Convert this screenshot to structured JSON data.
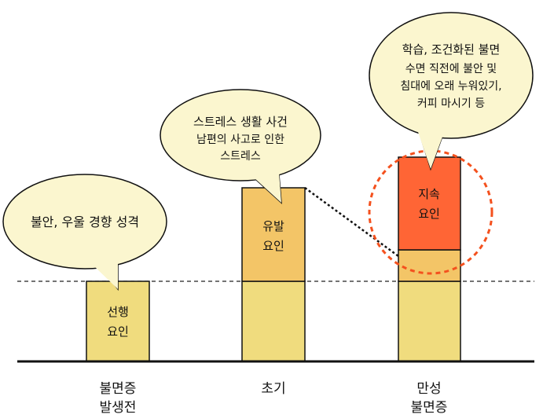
{
  "colors": {
    "bar_yellow": "#f0dc7e",
    "bar_orange": "#f3c567",
    "bar_red": "#ff6535",
    "bubble_fill": "#fbf6cf",
    "circle_dash": "#f4511e"
  },
  "bubbles": {
    "predisposing": {
      "line1": "불안, 우울 경향 성격"
    },
    "precipitating": {
      "line1": "스트레스 생활 사건",
      "line2": "남편의 사고로 인한",
      "line3": "스트레스"
    },
    "perpetuating": {
      "line1": "학습, 조건화된 불면",
      "line2": "수면 직전에 불안 및",
      "line3": "침대에 오래 누워있기,",
      "line4": "커피 마시기 등"
    }
  },
  "bars": {
    "predisposing": {
      "line1": "선행",
      "line2": "요인"
    },
    "precipitating": {
      "line1": "유발",
      "line2": "요인"
    },
    "perpetuating": {
      "line1": "지속",
      "line2": "요인"
    }
  },
  "stages": {
    "pre": {
      "line1": "불면증",
      "line2": "발생전"
    },
    "early": {
      "line1": "초기"
    },
    "chronic": {
      "line1": "만성",
      "line2": "불면증"
    }
  }
}
